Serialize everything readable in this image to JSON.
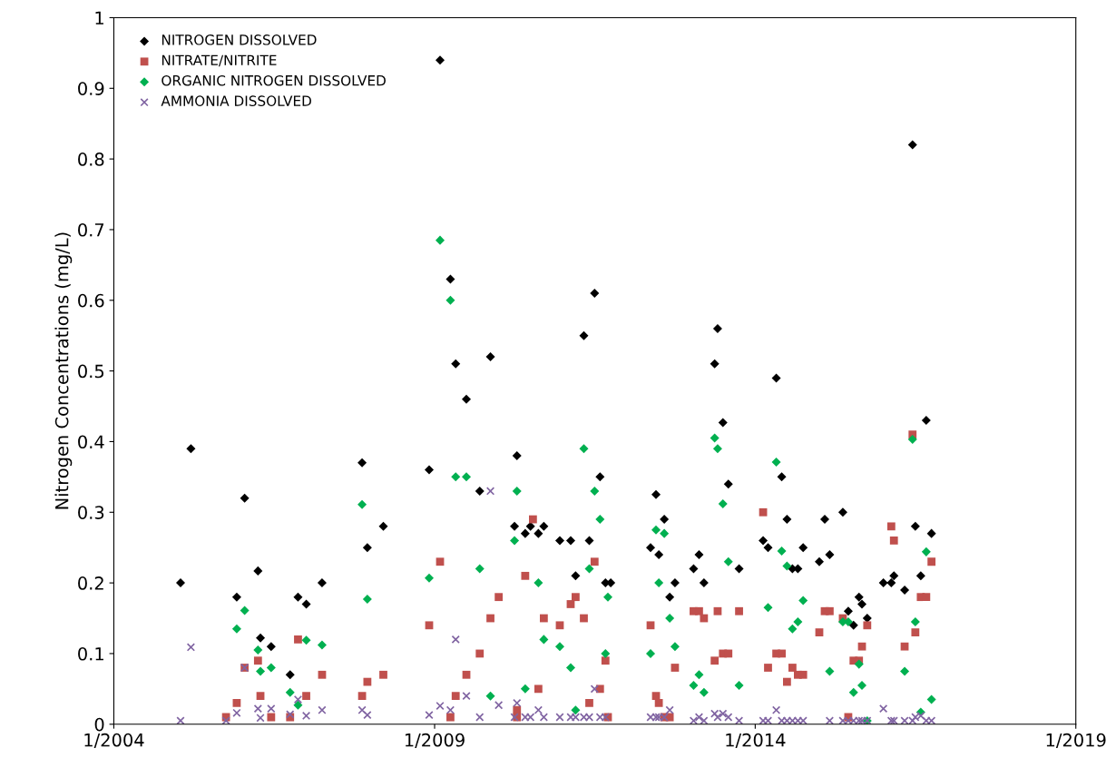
{
  "chart_data": {
    "type": "scatter",
    "ylabel": "Nitrogen Concentrations (mg/L)",
    "xlim": [
      "2004-01-01",
      "2019-01-01"
    ],
    "xticks": [
      {
        "value": "2004-01-01",
        "label": "1/2004"
      },
      {
        "value": "2009-01-01",
        "label": "1/2009"
      },
      {
        "value": "2014-01-01",
        "label": "1/2014"
      },
      {
        "value": "2019-01-01",
        "label": "1/2019"
      }
    ],
    "ylim": [
      0,
      1
    ],
    "yticks": [
      0,
      0.1,
      0.2,
      0.3,
      0.4,
      0.5,
      0.6,
      0.7,
      0.8,
      0.9,
      1
    ],
    "legend": "top left",
    "series": [
      {
        "name": "NITROGEN DISSOLVED",
        "color": "#000000",
        "marker": "diamond",
        "x": [
          "2005-01-15",
          "2005-03-15",
          "2005-12-01",
          "2006-01-15",
          "2006-04-01",
          "2006-04-15",
          "2006-06-15",
          "2006-10-01",
          "2006-11-15",
          "2007-01-01",
          "2007-04-01",
          "2007-11-15",
          "2007-12-15",
          "2008-03-15",
          "2008-12-01",
          "2009-02-01",
          "2009-04-01",
          "2009-05-01",
          "2009-07-01",
          "2009-09-15",
          "2009-11-15",
          "2010-04-01",
          "2010-04-15",
          "2010-06-01",
          "2010-07-01",
          "2010-08-15",
          "2010-09-15",
          "2010-12-15",
          "2011-02-15",
          "2011-03-15",
          "2011-05-01",
          "2011-06-01",
          "2011-07-01",
          "2011-08-01",
          "2011-09-01",
          "2011-10-01",
          "2012-05-15",
          "2012-06-15",
          "2012-07-01",
          "2012-08-01",
          "2012-09-01",
          "2012-10-01",
          "2013-01-15",
          "2013-02-15",
          "2013-03-15",
          "2013-05-15",
          "2013-06-01",
          "2013-07-01",
          "2013-08-01",
          "2013-10-01",
          "2014-02-15",
          "2014-03-15",
          "2014-05-01",
          "2014-06-01",
          "2014-07-01",
          "2014-08-01",
          "2014-09-01",
          "2014-10-01",
          "2015-01-01",
          "2015-02-01",
          "2015-03-01",
          "2015-05-15",
          "2015-06-15",
          "2015-07-15",
          "2015-08-15",
          "2015-09-01",
          "2015-10-01",
          "2016-01-01",
          "2016-02-15",
          "2016-03-01",
          "2016-05-01",
          "2016-06-15",
          "2016-07-01",
          "2016-08-01",
          "2016-09-01",
          "2016-10-01"
        ],
        "values": [
          0.2,
          0.39,
          0.18,
          0.32,
          0.217,
          0.122,
          0.11,
          0.07,
          0.18,
          0.17,
          0.2,
          0.37,
          0.25,
          0.28,
          0.36,
          0.94,
          0.63,
          0.51,
          0.46,
          0.33,
          0.52,
          0.28,
          0.38,
          0.27,
          0.28,
          0.27,
          0.28,
          0.26,
          0.26,
          0.21,
          0.55,
          0.26,
          0.61,
          0.35,
          0.2,
          0.2,
          0.25,
          0.325,
          0.24,
          0.29,
          0.18,
          0.2,
          0.22,
          0.24,
          0.2,
          0.51,
          0.56,
          0.427,
          0.34,
          0.22,
          0.26,
          0.25,
          0.49,
          0.35,
          0.29,
          0.22,
          0.22,
          0.25,
          0.23,
          0.29,
          0.24,
          0.3,
          0.16,
          0.14,
          0.18,
          0.17,
          0.15,
          0.2,
          0.2,
          0.21,
          0.19,
          0.82,
          0.28,
          0.21,
          0.43,
          0.27
        ]
      },
      {
        "name": "NITRATE/NITRITE",
        "color": "#c0504d",
        "marker": "square",
        "x": [
          "2005-10-01",
          "2005-12-01",
          "2006-01-15",
          "2006-04-01",
          "2006-04-15",
          "2006-06-15",
          "2006-10-01",
          "2006-11-15",
          "2007-01-01",
          "2007-04-01",
          "2007-11-15",
          "2007-12-15",
          "2008-03-15",
          "2008-12-01",
          "2009-02-01",
          "2009-04-01",
          "2009-05-01",
          "2009-07-01",
          "2009-09-15",
          "2009-11-15",
          "2010-01-01",
          "2010-04-15",
          "2010-04-15",
          "2010-06-01",
          "2010-07-15",
          "2010-08-15",
          "2010-09-15",
          "2010-12-15",
          "2011-02-15",
          "2011-03-15",
          "2011-05-01",
          "2011-06-01",
          "2011-07-01",
          "2011-08-01",
          "2011-09-01",
          "2011-09-15",
          "2012-05-15",
          "2012-06-15",
          "2012-07-01",
          "2012-08-01",
          "2012-09-01",
          "2012-10-01",
          "2013-01-15",
          "2013-02-15",
          "2013-03-15",
          "2013-05-15",
          "2013-06-01",
          "2013-07-01",
          "2013-08-01",
          "2013-10-01",
          "2014-02-15",
          "2014-03-15",
          "2014-05-01",
          "2014-06-01",
          "2014-07-01",
          "2014-08-01",
          "2014-09-01",
          "2014-10-01",
          "2015-01-01",
          "2015-02-01",
          "2015-03-01",
          "2015-05-15",
          "2015-06-15",
          "2015-07-15",
          "2015-08-15",
          "2015-09-01",
          "2015-10-01",
          "2016-02-15",
          "2016-03-01",
          "2016-05-01",
          "2016-06-15",
          "2016-07-01",
          "2016-08-01",
          "2016-09-01",
          "2016-10-01"
        ],
        "values": [
          0.01,
          0.03,
          0.08,
          0.09,
          0.04,
          0.01,
          0.01,
          0.12,
          0.04,
          0.07,
          0.04,
          0.06,
          0.07,
          0.14,
          0.23,
          0.01,
          0.04,
          0.07,
          0.1,
          0.15,
          0.18,
          0.01,
          0.02,
          0.21,
          0.29,
          0.05,
          0.15,
          0.14,
          0.17,
          0.18,
          0.15,
          0.03,
          0.23,
          0.05,
          0.09,
          0.01,
          0.14,
          0.04,
          0.03,
          0.01,
          0.01,
          0.08,
          0.16,
          0.16,
          0.15,
          0.09,
          0.16,
          0.1,
          0.1,
          0.16,
          0.3,
          0.08,
          0.1,
          0.1,
          0.06,
          0.08,
          0.07,
          0.07,
          0.13,
          0.16,
          0.16,
          0.15,
          0.01,
          0.09,
          0.09,
          0.11,
          0.14,
          0.28,
          0.26,
          0.11,
          0.41,
          0.13,
          0.18,
          0.18,
          0.23
        ]
      },
      {
        "name": "ORGANIC NITROGEN DISSOLVED",
        "color": "#00b050",
        "marker": "diamond",
        "x": [
          "2005-12-01",
          "2006-01-15",
          "2006-04-01",
          "2006-04-15",
          "2006-06-15",
          "2006-10-01",
          "2006-11-15",
          "2007-01-01",
          "2007-04-01",
          "2007-11-15",
          "2007-12-15",
          "2008-12-01",
          "2009-02-01",
          "2009-04-01",
          "2009-05-01",
          "2009-07-01",
          "2009-09-15",
          "2009-11-15",
          "2010-04-01",
          "2010-04-15",
          "2010-06-01",
          "2010-08-15",
          "2010-09-15",
          "2010-12-15",
          "2011-02-15",
          "2011-03-15",
          "2011-05-01",
          "2011-06-01",
          "2011-07-01",
          "2011-08-01",
          "2011-09-01",
          "2011-09-15",
          "2012-05-15",
          "2012-06-15",
          "2012-07-01",
          "2012-08-01",
          "2012-09-01",
          "2012-10-01",
          "2013-01-15",
          "2013-02-15",
          "2013-03-15",
          "2013-05-15",
          "2013-06-01",
          "2013-07-01",
          "2013-08-01",
          "2013-10-01",
          "2014-03-15",
          "2014-05-01",
          "2014-06-01",
          "2014-07-01",
          "2014-08-01",
          "2014-09-01",
          "2014-10-01",
          "2015-03-01",
          "2015-05-15",
          "2015-06-15",
          "2015-07-15",
          "2015-08-15",
          "2015-09-01",
          "2015-10-01",
          "2016-05-01",
          "2016-06-15",
          "2016-07-01",
          "2016-08-01",
          "2016-09-01",
          "2016-10-01"
        ],
        "values": [
          0.135,
          0.161,
          0.105,
          0.075,
          0.08,
          0.045,
          0.027,
          0.119,
          0.112,
          0.311,
          0.177,
          0.207,
          0.685,
          0.6,
          0.35,
          0.35,
          0.22,
          0.04,
          0.26,
          0.33,
          0.05,
          0.2,
          0.12,
          0.11,
          0.08,
          0.02,
          0.39,
          0.22,
          0.33,
          0.29,
          0.1,
          0.18,
          0.1,
          0.275,
          0.2,
          0.27,
          0.15,
          0.11,
          0.055,
          0.07,
          0.045,
          0.405,
          0.39,
          0.312,
          0.23,
          0.055,
          0.165,
          0.371,
          0.245,
          0.224,
          0.135,
          0.145,
          0.175,
          0.075,
          0.145,
          0.145,
          0.045,
          0.085,
          0.055,
          0.005,
          0.075,
          0.403,
          0.145,
          0.017,
          0.244,
          0.035
        ]
      },
      {
        "name": "AMMONIA DISSOLVED",
        "color": "#8064a2",
        "marker": "cross",
        "x": [
          "2005-01-15",
          "2005-03-15",
          "2005-10-01",
          "2005-12-01",
          "2006-01-15",
          "2006-04-01",
          "2006-04-15",
          "2006-06-15",
          "2006-10-01",
          "2006-11-15",
          "2007-01-01",
          "2007-04-01",
          "2007-11-15",
          "2007-12-15",
          "2008-12-01",
          "2009-02-01",
          "2009-04-01",
          "2009-05-01",
          "2009-07-01",
          "2009-09-15",
          "2010-01-01",
          "2009-11-15",
          "2010-04-01",
          "2010-04-15",
          "2010-06-01",
          "2010-07-01",
          "2010-08-15",
          "2010-09-15",
          "2010-12-15",
          "2011-02-15",
          "2011-03-15",
          "2011-05-01",
          "2011-06-01",
          "2011-07-01",
          "2011-08-01",
          "2011-09-01",
          "2012-05-15",
          "2012-06-15",
          "2012-07-01",
          "2012-08-01",
          "2012-09-01",
          "2013-01-15",
          "2013-02-15",
          "2013-03-15",
          "2013-05-15",
          "2013-06-01",
          "2013-07-01",
          "2013-08-01",
          "2013-10-01",
          "2014-02-15",
          "2014-03-15",
          "2014-05-01",
          "2014-06-01",
          "2014-07-01",
          "2014-08-01",
          "2014-09-01",
          "2014-10-01",
          "2015-03-01",
          "2015-05-15",
          "2015-06-15",
          "2015-07-15",
          "2015-08-15",
          "2015-09-01",
          "2015-10-01",
          "2016-01-01",
          "2016-02-15",
          "2016-03-01",
          "2016-05-01",
          "2016-06-15",
          "2016-07-01",
          "2016-08-01",
          "2016-09-01",
          "2016-10-01"
        ],
        "values": [
          0.005,
          0.109,
          0.005,
          0.016,
          0.08,
          0.022,
          0.009,
          0.022,
          0.014,
          0.035,
          0.012,
          0.02,
          0.02,
          0.013,
          0.013,
          0.026,
          0.02,
          0.12,
          0.04,
          0.01,
          0.027,
          0.33,
          0.01,
          0.03,
          0.01,
          0.01,
          0.02,
          0.01,
          0.01,
          0.01,
          0.01,
          0.01,
          0.01,
          0.05,
          0.01,
          0.01,
          0.01,
          0.01,
          0.01,
          0.01,
          0.02,
          0.005,
          0.01,
          0.005,
          0.015,
          0.01,
          0.015,
          0.01,
          0.005,
          0.005,
          0.005,
          0.02,
          0.005,
          0.005,
          0.005,
          0.005,
          0.005,
          0.005,
          0.005,
          0.005,
          0.005,
          0.005,
          0.005,
          0.005,
          0.022,
          0.005,
          0.005,
          0.005,
          0.005,
          0.01,
          0.012,
          0.005,
          0.005
        ]
      }
    ]
  }
}
